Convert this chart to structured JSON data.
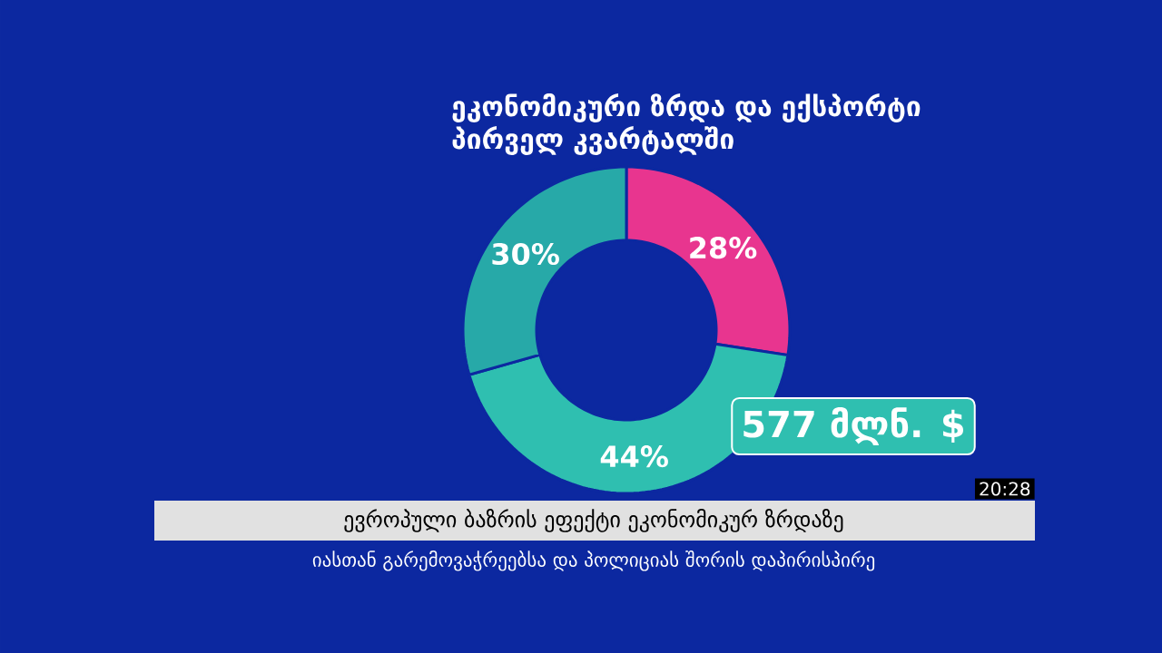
{
  "chart_data": {
    "type": "donut",
    "title": "ეკონომიკური ზრდა და ექსპორტი პირველ კვარტალში",
    "subtitle": "ევროპული ბაზრის ეფექტი ეკონომიკურ ზრდაზე",
    "categories": [
      null,
      null,
      null
    ],
    "values": [
      28,
      44,
      30
    ],
    "colors": [
      "#e8358f",
      "#2fbfb0",
      "#27a9a8"
    ],
    "value_labels": [
      "28%",
      "44%",
      "30%"
    ],
    "annotations": [
      "577 მლნ. $",
      "20:28",
      "იასთან გარემოვაჭრეებსა და პოლიციას შორის დაპირისპირე"
    ]
  }
}
